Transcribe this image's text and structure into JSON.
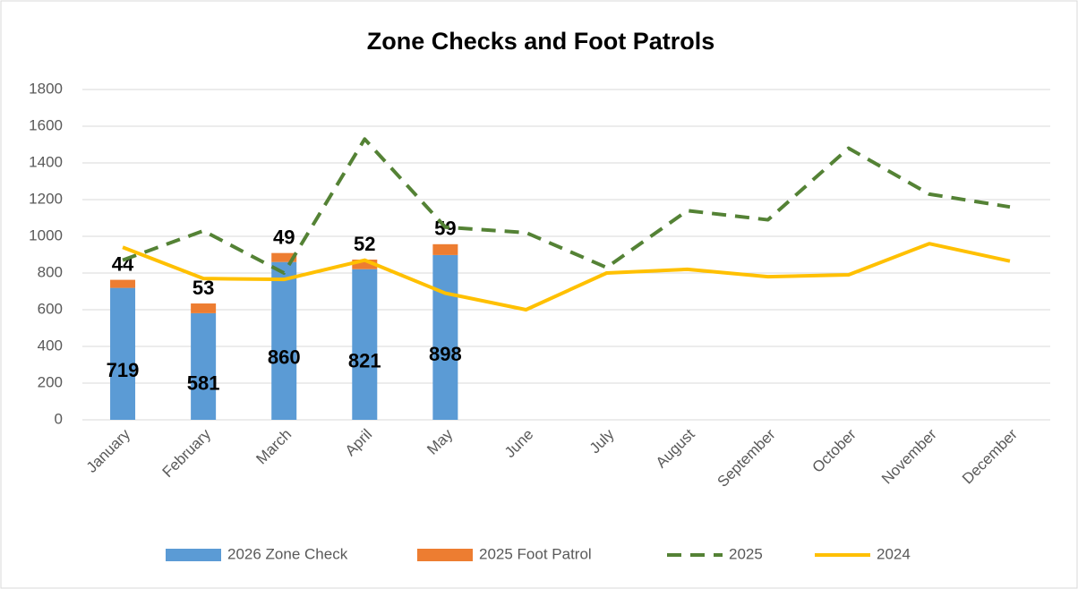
{
  "chart_data": {
    "type": "bar",
    "title": "Zone Checks and Foot Patrols",
    "categories": [
      "January",
      "February",
      "March",
      "April",
      "May",
      "June",
      "July",
      "August",
      "September",
      "October",
      "November",
      "December"
    ],
    "series": [
      {
        "name": "2026 Zone Check",
        "type": "bar",
        "color": "#5b9bd5",
        "values": [
          719,
          581,
          860,
          821,
          898,
          null,
          null,
          null,
          null,
          null,
          null,
          null
        ]
      },
      {
        "name": "2025 Foot Patrol",
        "type": "bar",
        "color": "#ed7d31",
        "values": [
          44,
          53,
          49,
          52,
          59,
          null,
          null,
          null,
          null,
          null,
          null,
          null
        ]
      },
      {
        "name": "2025",
        "type": "line",
        "dashed": true,
        "color": "#548235",
        "values": [
          870,
          1030,
          800,
          1530,
          1050,
          1020,
          830,
          1140,
          1090,
          1480,
          1230,
          1160
        ]
      },
      {
        "name": "2024",
        "type": "line",
        "dashed": false,
        "color": "#ffc000",
        "values": [
          940,
          770,
          765,
          870,
          690,
          600,
          800,
          820,
          780,
          790,
          960,
          865
        ]
      }
    ],
    "ylim": [
      0,
      1800
    ],
    "yticks": [
      0,
      200,
      400,
      600,
      800,
      1000,
      1200,
      1400,
      1600,
      1800
    ],
    "grid": true,
    "stacked": true,
    "legend": "bottom"
  }
}
